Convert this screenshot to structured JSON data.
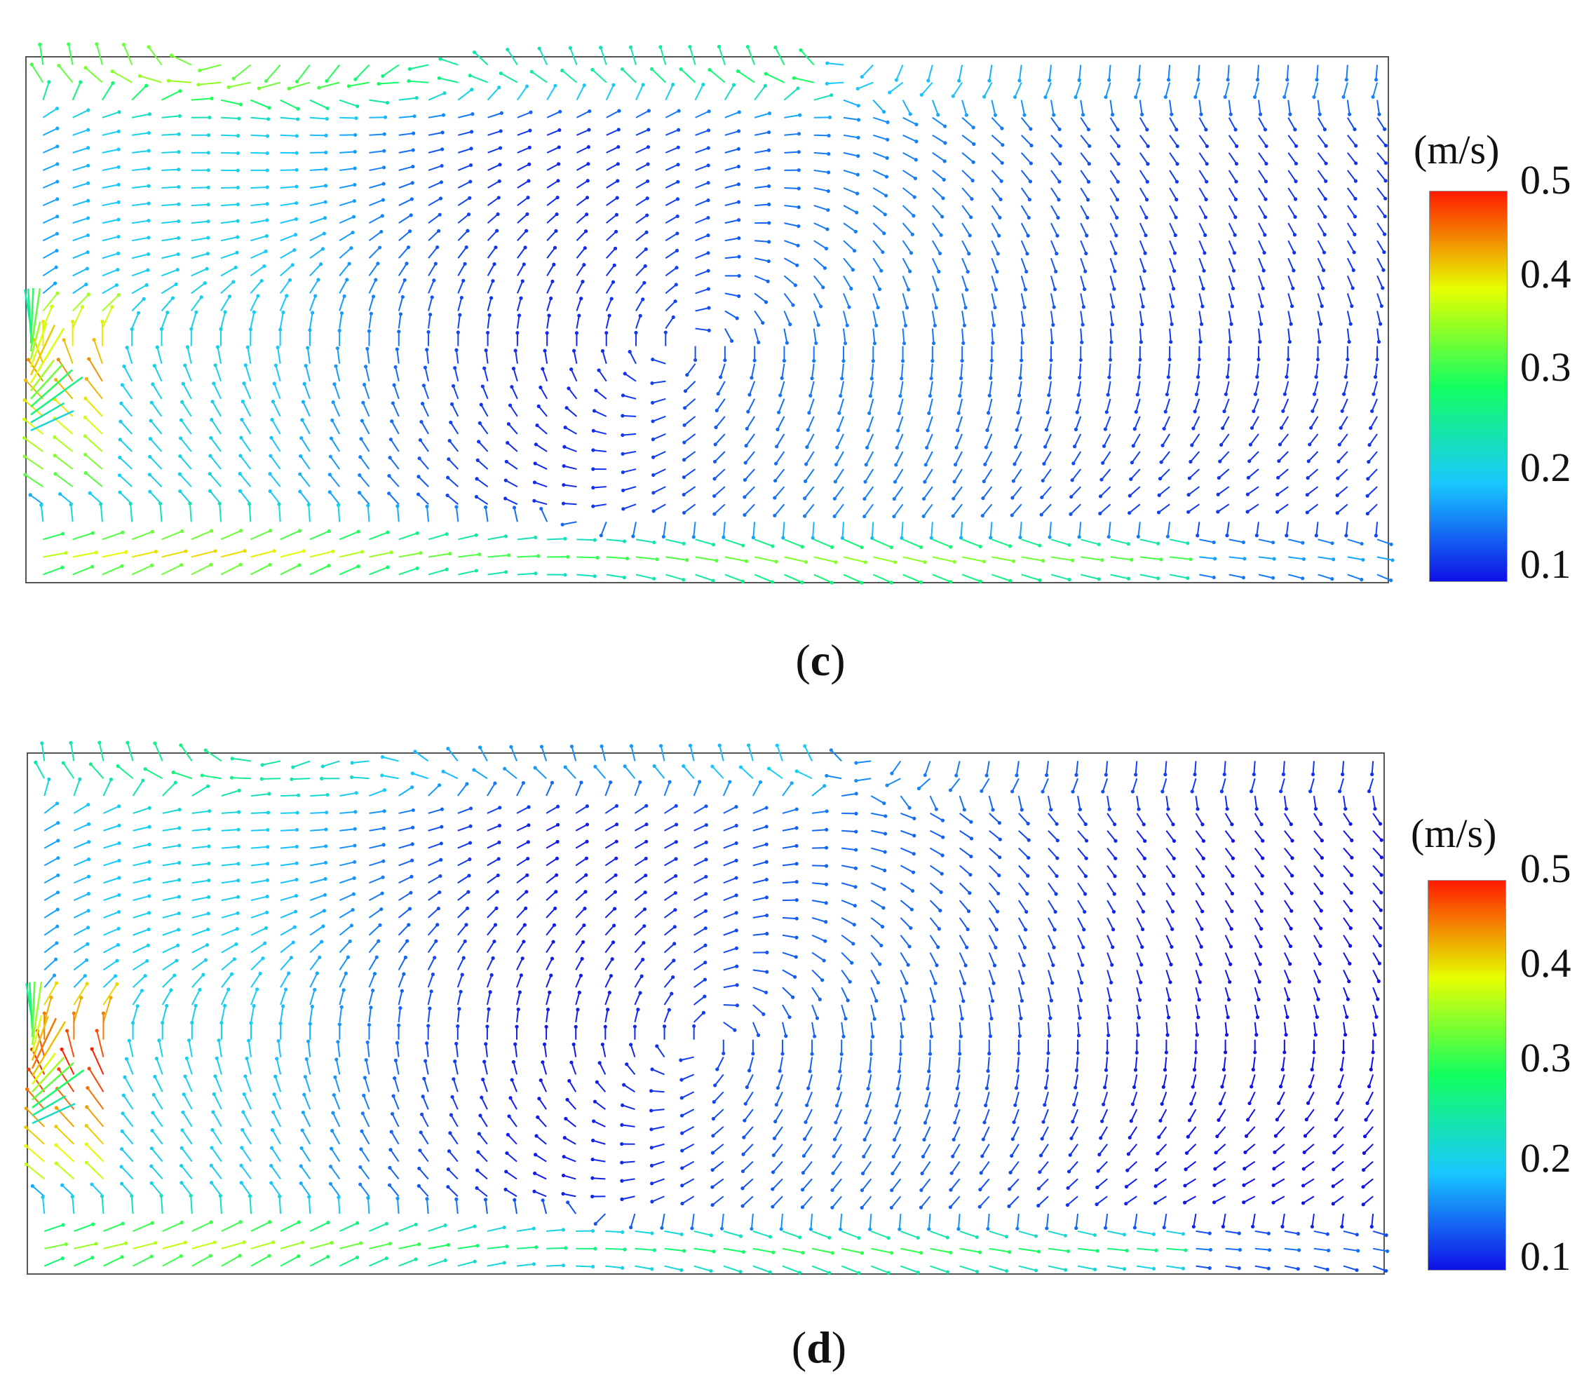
{
  "figure": {
    "panels": [
      {
        "id": "c",
        "caption_open": "(",
        "caption_letter": "c",
        "caption_close": ")",
        "unit_label": "(m/s)"
      },
      {
        "id": "d",
        "caption_open": "(",
        "caption_letter": "d",
        "caption_close": ")",
        "unit_label": "(m/s)"
      }
    ]
  },
  "chart_data": [
    {
      "type": "vector-field",
      "panel": "c",
      "colorbar": {
        "label": "(m/s)",
        "range": [
          0.1,
          0.5
        ],
        "ticks": [
          "0.5",
          "0.4",
          "0.3",
          "0.2",
          "0.1"
        ],
        "colors": [
          "#1010e6",
          "#18c8ff",
          "#12ff60",
          "#e6ff00",
          "#ff1a00"
        ]
      },
      "flow": {
        "vortex_center": [
          0.4,
          0.55
        ],
        "inlet_jet_peak_speed": 0.45,
        "bottom_return_speed": 0.35,
        "top_stream_speed": 0.3,
        "right_region_speed": 0.12
      }
    },
    {
      "type": "vector-field",
      "panel": "d",
      "colorbar": {
        "label": "(m/s)",
        "range": [
          0.1,
          0.5
        ],
        "ticks": [
          "0.5",
          "0.4",
          "0.3",
          "0.2",
          "0.1"
        ],
        "colors": [
          "#1010e6",
          "#18c8ff",
          "#12ff60",
          "#e6ff00",
          "#ff1a00"
        ]
      },
      "flow": {
        "vortex_center": [
          0.45,
          0.55
        ],
        "inlet_jet_peak_speed": 0.5,
        "bottom_return_speed": 0.32,
        "top_stream_speed": 0.22,
        "right_region_speed": 0.1
      }
    }
  ]
}
